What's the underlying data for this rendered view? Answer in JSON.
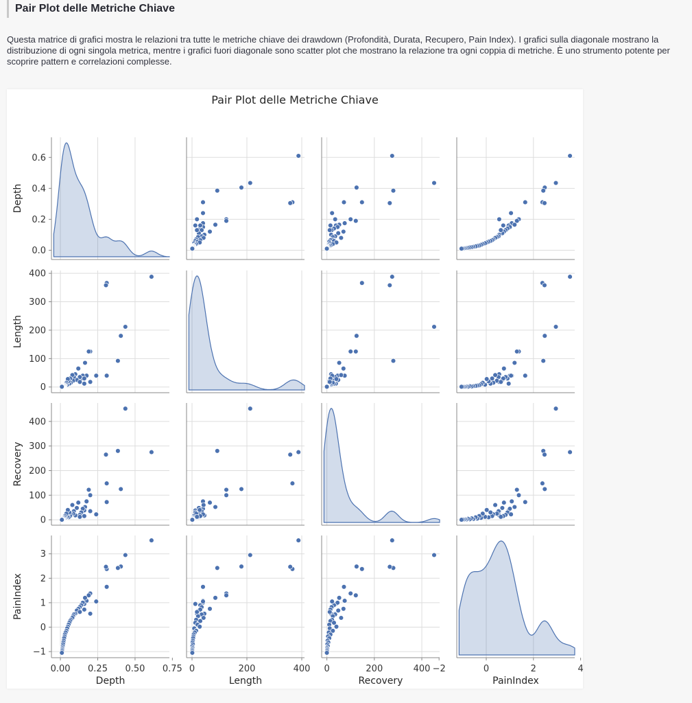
{
  "section": {
    "title": "Pair Plot delle Metriche Chiave",
    "description": "Questa matrice di grafici mostra le relazioni tra tutte le metriche chiave dei drawdown (Profondità, Durata, Recupero, Pain Index). I grafici sulla diagonale mostrano la distribuzione di ogni singola metrica, mentre i grafici fuori diagonale sono scatter plot che mostrano la relazione tra ogni coppia di metriche. È uno strumento potente per scoprire pattern e correlazioni complesse."
  },
  "colors": {
    "point": "#4c72b0",
    "point_edge": "#ffffff",
    "kde_fill": "#4c72b0",
    "grid": "#dddddd",
    "spine": "#888888"
  },
  "chart_data": {
    "type": "scatter",
    "title": "Pair Plot delle Metriche Chiave",
    "variables": [
      "Depth",
      "Length",
      "Recovery",
      "PainIndex"
    ],
    "axes": {
      "Depth": {
        "ticks": [
          0.0,
          0.2,
          0.4,
          0.6
        ],
        "tick_labels": [
          "0.0",
          "0.2",
          "0.4",
          "0.6"
        ],
        "xticks": [
          0.0,
          0.25,
          0.5,
          0.75
        ],
        "xtick_labels": [
          "0.00",
          "0.25",
          "0.50",
          "0.75"
        ],
        "range": [
          -0.06,
          0.73
        ]
      },
      "Length": {
        "ticks": [
          0,
          100,
          200,
          300,
          400
        ],
        "tick_labels": [
          "0",
          "100",
          "200",
          "300",
          "400"
        ],
        "xticks": [
          0,
          200,
          400
        ],
        "xtick_labels": [
          "0",
          "200",
          "400"
        ],
        "range": [
          -20,
          410
        ]
      },
      "Recovery": {
        "ticks": [
          0,
          100,
          200,
          300,
          400
        ],
        "tick_labels": [
          "0",
          "100",
          "200",
          "300",
          "400"
        ],
        "xticks": [
          0,
          200,
          400
        ],
        "xtick_labels": [
          "0",
          "200",
          "400"
        ],
        "range": [
          -22,
          475
        ]
      },
      "PainIndex": {
        "ticks": [
          -1,
          0,
          1,
          2,
          3
        ],
        "tick_labels": [
          "−1",
          "0",
          "1",
          "2",
          "3"
        ],
        "xticks": [
          -2,
          0,
          2,
          4
        ],
        "xtick_labels": [
          "−2",
          "0",
          "2",
          "4"
        ],
        "range": [
          -1.25,
          3.75
        ]
      }
    },
    "points": [
      {
        "Depth": 0.61,
        "Length": 388,
        "Recovery": 275,
        "PainIndex": 3.55
      },
      {
        "Depth": 0.435,
        "Length": 212,
        "Recovery": 452,
        "PainIndex": 2.95
      },
      {
        "Depth": 0.405,
        "Length": 180,
        "Recovery": 125,
        "PainIndex": 2.48
      },
      {
        "Depth": 0.385,
        "Length": 92,
        "Recovery": 280,
        "PainIndex": 2.42
      },
      {
        "Depth": 0.31,
        "Length": 366,
        "Recovery": 148,
        "PainIndex": 2.38
      },
      {
        "Depth": 0.305,
        "Length": 358,
        "Recovery": 265,
        "PainIndex": 2.47
      },
      {
        "Depth": 0.31,
        "Length": 40,
        "Recovery": 72,
        "PainIndex": 1.65
      },
      {
        "Depth": 0.2,
        "Length": 125,
        "Recovery": 100,
        "PainIndex": 1.38
      },
      {
        "Depth": 0.19,
        "Length": 125,
        "Recovery": 122,
        "PainIndex": 1.3
      },
      {
        "Depth": 0.2,
        "Length": 18,
        "Recovery": 35,
        "PainIndex": 0.55
      },
      {
        "Depth": 0.175,
        "Length": 40,
        "Recovery": 75,
        "PainIndex": 1.08
      },
      {
        "Depth": 0.165,
        "Length": 85,
        "Recovery": 52,
        "PainIndex": 1.2
      },
      {
        "Depth": 0.16,
        "Length": 12,
        "Recovery": 38,
        "PainIndex": 0.95
      },
      {
        "Depth": 0.15,
        "Length": 40,
        "Recovery": 45,
        "PainIndex": 1.0
      },
      {
        "Depth": 0.14,
        "Length": 30,
        "Recovery": 30,
        "PainIndex": 0.9
      },
      {
        "Depth": 0.13,
        "Length": 35,
        "Recovery": 20,
        "PainIndex": 0.82
      },
      {
        "Depth": 0.12,
        "Length": 65,
        "Recovery": 70,
        "PainIndex": 0.75
      },
      {
        "Depth": 0.11,
        "Length": 25,
        "Recovery": 48,
        "PainIndex": 0.68
      },
      {
        "Depth": 0.1,
        "Length": 45,
        "Recovery": 18,
        "PainIndex": 0.55
      },
      {
        "Depth": 0.09,
        "Length": 35,
        "Recovery": 35,
        "PainIndex": 0.52
      },
      {
        "Depth": 0.085,
        "Length": 22,
        "Recovery": 25,
        "PainIndex": 0.45
      },
      {
        "Depth": 0.08,
        "Length": 42,
        "Recovery": 60,
        "PainIndex": 0.38
      },
      {
        "Depth": 0.07,
        "Length": 15,
        "Recovery": 22,
        "PainIndex": 0.3
      },
      {
        "Depth": 0.065,
        "Length": 30,
        "Recovery": 15,
        "PainIndex": 0.25
      },
      {
        "Depth": 0.06,
        "Length": 12,
        "Recovery": 30,
        "PainIndex": 0.18
      },
      {
        "Depth": 0.055,
        "Length": 20,
        "Recovery": 10,
        "PainIndex": 0.1
      },
      {
        "Depth": 0.05,
        "Length": 28,
        "Recovery": 40,
        "PainIndex": 0.02
      },
      {
        "Depth": 0.045,
        "Length": 8,
        "Recovery": 12,
        "PainIndex": -0.05
      },
      {
        "Depth": 0.04,
        "Length": 15,
        "Recovery": 25,
        "PainIndex": -0.15
      },
      {
        "Depth": 0.035,
        "Length": 10,
        "Recovery": 8,
        "PainIndex": -0.22
      },
      {
        "Depth": 0.03,
        "Length": 6,
        "Recovery": 15,
        "PainIndex": -0.3
      },
      {
        "Depth": 0.028,
        "Length": 5,
        "Recovery": 5,
        "PainIndex": -0.38
      },
      {
        "Depth": 0.025,
        "Length": 4,
        "Recovery": 10,
        "PainIndex": -0.45
      },
      {
        "Depth": 0.022,
        "Length": 3,
        "Recovery": 3,
        "PainIndex": -0.55
      },
      {
        "Depth": 0.02,
        "Length": 2,
        "Recovery": 6,
        "PainIndex": -0.62
      },
      {
        "Depth": 0.018,
        "Length": 3,
        "Recovery": 2,
        "PainIndex": -0.7
      },
      {
        "Depth": 0.016,
        "Length": 1,
        "Recovery": 4,
        "PainIndex": -0.78
      },
      {
        "Depth": 0.014,
        "Length": 2,
        "Recovery": 1,
        "PainIndex": -0.85
      },
      {
        "Depth": 0.013,
        "Length": 1,
        "Recovery": 2,
        "PainIndex": -0.9
      },
      {
        "Depth": 0.012,
        "Length": 1,
        "Recovery": 1,
        "PainIndex": -0.95
      },
      {
        "Depth": 0.011,
        "Length": 1,
        "Recovery": 1,
        "PainIndex": -1.0
      },
      {
        "Depth": 0.01,
        "Length": 1,
        "Recovery": 0,
        "PainIndex": -1.05
      },
      {
        "Depth": 0.24,
        "Length": 40,
        "Recovery": 22,
        "PainIndex": 1.05
      },
      {
        "Depth": 0.16,
        "Length": 30,
        "Recovery": 15,
        "PainIndex": 0.72
      },
      {
        "Depth": 0.13,
        "Length": 18,
        "Recovery": 12,
        "PainIndex": 0.62
      }
    ],
    "grid": true,
    "diagonal": "kde"
  }
}
